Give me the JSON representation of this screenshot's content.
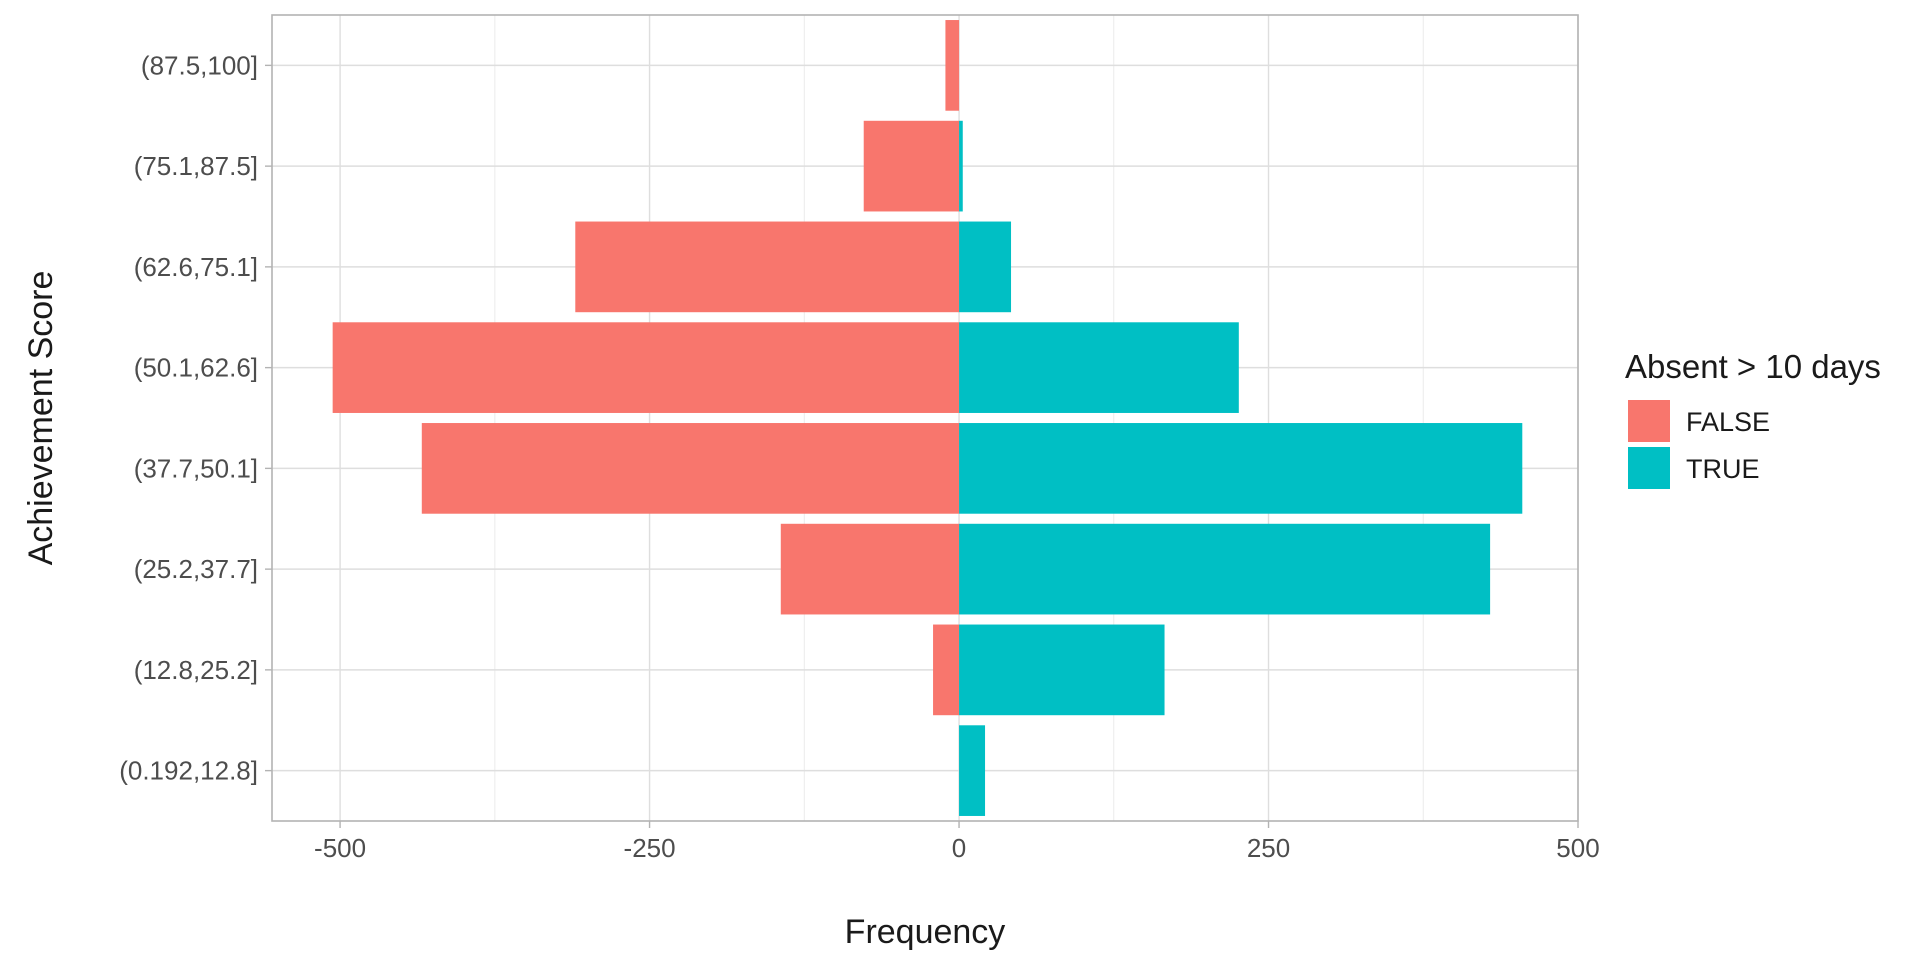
{
  "chart_data": {
    "type": "bar",
    "orientation": "horizontal",
    "stacking": "diverging",
    "categories": [
      "(0.192,12.8]",
      "(12.8,25.2]",
      "(25.2,37.7]",
      "(37.7,50.1]",
      "(50.1,62.6]",
      "(62.6,75.1]",
      "(75.1,87.5]",
      "(87.5,100]"
    ],
    "series": [
      {
        "name": "FALSE",
        "color": "#F8766D",
        "values": [
          0,
          -21,
          -144,
          -434,
          -506,
          -310,
          -77,
          -11
        ]
      },
      {
        "name": "TRUE",
        "color": "#00BFC4",
        "values": [
          21,
          166,
          429,
          455,
          226,
          42,
          3,
          0
        ]
      }
    ],
    "x_ticks": [
      -500,
      -250,
      0,
      250,
      500
    ],
    "x_tick_labels": [
      "-500",
      "-250",
      "0",
      "250",
      "500"
    ],
    "xlim": [
      -555,
      500
    ],
    "xlabel": "Frequency",
    "ylabel": "Achievement Score",
    "grid": true,
    "legend": {
      "title": "Absent > 10 days",
      "position": "right",
      "entries": [
        "FALSE",
        "TRUE"
      ]
    }
  }
}
